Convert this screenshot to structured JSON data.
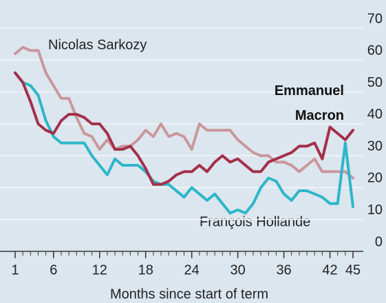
{
  "chart_data": {
    "type": "line",
    "x_label": "Months since start of term",
    "x": [
      1,
      2,
      3,
      4,
      5,
      6,
      7,
      8,
      9,
      10,
      11,
      12,
      13,
      14,
      15,
      16,
      17,
      18,
      19,
      20,
      21,
      22,
      23,
      24,
      25,
      26,
      27,
      28,
      29,
      30,
      31,
      32,
      33,
      34,
      35,
      36,
      37,
      38,
      39,
      40,
      41,
      42,
      43,
      44,
      45
    ],
    "xlim": [
      1,
      45
    ],
    "xticks": [
      1,
      6,
      12,
      18,
      24,
      30,
      36,
      42,
      45
    ],
    "ylim": [
      0,
      70
    ],
    "yticks": [
      0,
      10,
      20,
      30,
      40,
      50,
      60,
      70
    ],
    "grid": true,
    "series": [
      {
        "name": "Nicolas Sarkozy",
        "color": "#c9979d",
        "values": [
          62,
          64,
          63,
          63,
          56,
          52,
          48,
          48,
          42,
          37,
          36,
          32,
          35,
          32,
          33,
          33,
          35,
          38,
          36,
          40,
          36,
          37,
          36,
          32,
          40,
          38,
          38,
          38,
          38,
          35,
          33,
          31,
          30,
          30,
          28,
          28,
          27,
          25,
          27,
          29,
          25,
          25,
          25,
          25,
          23
        ]
      },
      {
        "name": "Emmanuel Macron",
        "color": "#a3304a",
        "values": [
          56,
          53,
          47,
          40,
          38,
          37,
          41,
          43,
          43,
          42,
          40,
          40,
          37,
          32,
          32,
          33,
          30,
          26,
          21,
          21,
          22,
          24,
          25,
          25,
          27,
          25,
          28,
          30,
          28,
          29,
          27,
          25,
          25,
          28,
          29,
          30,
          31,
          33,
          33,
          34,
          29,
          39,
          37,
          35,
          38
        ]
      },
      {
        "name": "François Hollande",
        "color": "#2eb6c9",
        "values": [
          56,
          53,
          52,
          49,
          41,
          36,
          34,
          34,
          34,
          34,
          30,
          27,
          24,
          29,
          27,
          27,
          27,
          25,
          22,
          21,
          21,
          19,
          17,
          20,
          18,
          16,
          18,
          15,
          12,
          13,
          12,
          15,
          20,
          23,
          22,
          18,
          16,
          19,
          19,
          18,
          17,
          15,
          15,
          34,
          14
        ]
      }
    ]
  }
}
